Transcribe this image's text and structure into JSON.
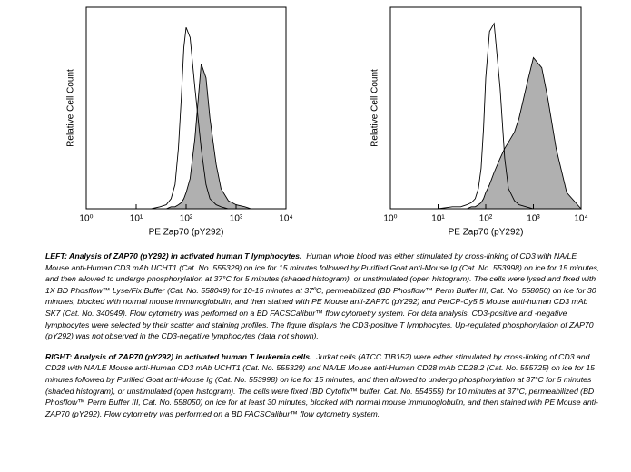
{
  "chart_data": [
    {
      "type": "histogram-overlay",
      "xlabel": "PE Zap70 (pY292)",
      "ylabel": "Relative Cell Count",
      "xlog": true,
      "xlim": [
        1,
        10000
      ],
      "ylim": [
        0,
        100
      ],
      "xticks": [
        {
          "value": 1,
          "label": "10⁰"
        },
        {
          "value": 10,
          "label": "10¹"
        },
        {
          "value": 100,
          "label": "10²"
        },
        {
          "value": 1000,
          "label": "10³"
        },
        {
          "value": 10000,
          "label": "10⁴"
        }
      ],
      "x": [
        1,
        3,
        10,
        20,
        30,
        40,
        50,
        60,
        70,
        80,
        90,
        100,
        120,
        150,
        200,
        250,
        300,
        400,
        500,
        700,
        1000,
        1500,
        2000,
        3000,
        5000,
        10000
      ],
      "series": [
        {
          "color": "#000000",
          "fill": "#b0b0b0",
          "values": [
            0,
            0,
            0,
            0,
            0,
            0,
            1,
            1,
            2,
            3,
            5,
            8,
            15,
            35,
            72,
            65,
            45,
            22,
            10,
            4,
            2,
            1,
            0,
            0,
            0,
            0
          ]
        },
        {
          "color": "#000000",
          "fill": "none",
          "values": [
            0,
            0,
            0,
            0,
            1,
            2,
            5,
            12,
            30,
            55,
            80,
            90,
            85,
            60,
            30,
            12,
            5,
            2,
            1,
            0,
            0,
            0,
            0,
            0,
            0,
            0
          ]
        }
      ]
    },
    {
      "type": "histogram-overlay",
      "xlabel": "PE Zap70 (pY292)",
      "ylabel": "Relative Cell Count",
      "xlog": true,
      "xlim": [
        1,
        10000
      ],
      "ylim": [
        0,
        100
      ],
      "xticks": [
        {
          "value": 1,
          "label": "10⁰"
        },
        {
          "value": 10,
          "label": "10¹"
        },
        {
          "value": 100,
          "label": "10²"
        },
        {
          "value": 1000,
          "label": "10³"
        },
        {
          "value": 10000,
          "label": "10⁴"
        }
      ],
      "x": [
        1,
        3,
        10,
        20,
        30,
        40,
        50,
        60,
        70,
        80,
        90,
        100,
        120,
        150,
        200,
        250,
        300,
        400,
        500,
        700,
        1000,
        1500,
        2000,
        3000,
        5000,
        10000
      ],
      "series": [
        {
          "color": "#000000",
          "fill": "#b0b0b0",
          "values": [
            0,
            0,
            0,
            0,
            0,
            0,
            1,
            1,
            2,
            3,
            5,
            8,
            12,
            18,
            25,
            30,
            33,
            38,
            45,
            60,
            75,
            70,
            55,
            30,
            8,
            0
          ]
        },
        {
          "color": "#000000",
          "fill": "none",
          "values": [
            0,
            0,
            0,
            1,
            1,
            2,
            3,
            5,
            10,
            20,
            40,
            65,
            88,
            92,
            60,
            25,
            10,
            4,
            2,
            1,
            0,
            0,
            0,
            0,
            0,
            0
          ]
        }
      ]
    }
  ],
  "caption": [
    {
      "heading": "LEFT: Analysis of ZAP70 (pY292) in activated human T lymphocytes.",
      "text": "Human whole blood was either stimulated by cross-linking of CD3 with NA/LE Mouse anti-Human CD3 mAb UCHT1 (Cat. No. 555329) on ice for 15 minutes followed by Purified Goat anti-Mouse Ig (Cat. No. 553998) on ice for 15 minutes, and then allowed to undergo phosphorylation at 37°C for 5 minutes (shaded histogram), or unstimulated (open histogram).  The cells were lysed and fixed with 1X BD Phosflow™ Lyse/Fix Buffer (Cat. No. 558049) for 10-15 minutes at 37ºC, permeabilized (BD Phosflow™ Perm Buffer III, Cat. No. 558050) on ice for 30 minutes, blocked with normal mouse immunoglobulin, and then stained with PE Mouse anti-ZAP70 (pY292) and PerCP-Cy5.5 Mouse anti-human CD3 mAb SK7 (Cat. No. 340949).  Flow cytometry was performed on a BD FACSCalibur™ flow cytometry system.  For data analysis, CD3-positive and -negative lymphocytes were selected by their scatter and staining profiles.  The figure displays the CD3-positive T lymphocytes.  Up-regulated phosphorylation of ZAP70 (pY292) was not observed in the CD3-negative lymphocytes (data not shown)."
    },
    {
      "heading": "RIGHT: Analysis of ZAP70 (pY292) in activated human T leukemia cells.",
      "text": "Jurkat cells (ATCC TIB152) were either stimulated by cross-linking of CD3 and CD28 with NA/LE Mouse anti-Human CD3 mAb UCHT1 (Cat. No. 555329) and NA/LE Mouse anti-Human CD28 mAb CD28.2 (Cat. No. 555725) on ice for 15 minutes followed by Purified Goat anti-Mouse Ig (Cat. No. 553998) on ice for 15 minutes, and then allowed to undergo phosphorylation at 37°C for 5 minutes (shaded histogram), or unstimulated (open histogram).  The cells were fixed (BD Cytofix™ buffer, Cat. No. 554655) for 10 minutes at 37°C, permeabilized (BD Phosflow™ Perm Buffer III, Cat. No. 558050) on ice for at least 30 minutes, blocked with normal mouse immunoglobulin, and then stained with PE Mouse anti-ZAP70 (pY292).  Flow cytometry was performed on a BD FACSCalibur™ flow cytometry system."
    }
  ]
}
